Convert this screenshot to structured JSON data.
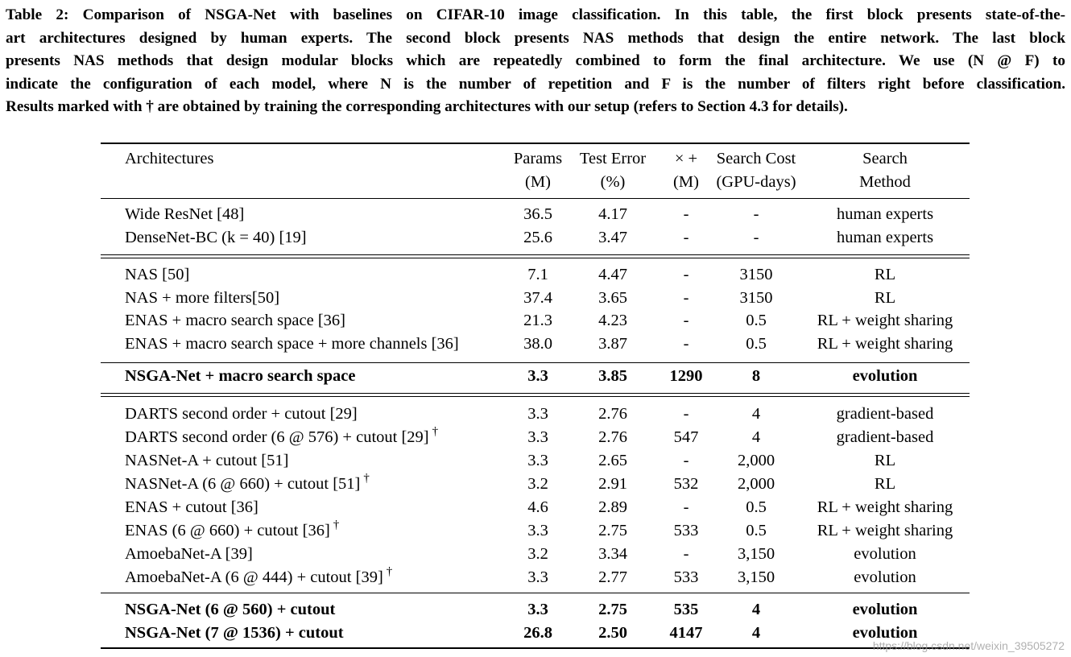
{
  "caption_lines": [
    "Table 2: Comparison of NSGA-Net with baselines on CIFAR-10 image classification. In this table, the first block presents state-of-the-",
    "art architectures designed by human experts. The second block presents NAS methods that design the entire network. The last block",
    "presents NAS methods that design modular blocks which are repeatedly combined to form the final architecture. We use (N @ F) to",
    "indicate the configuration of each model, where N is the number of repetition and F is the number of filters right before classification.",
    "Results marked with † are obtained by training the corresponding architectures with our setup (refers to Section 4.3 for details)."
  ],
  "header": {
    "architectures": "Architectures",
    "params_1": "Params",
    "params_2": "(M)",
    "error_1": "Test Error",
    "error_2": "(%)",
    "macs_1": "× +",
    "macs_2": "(M)",
    "cost_1": "Search Cost",
    "cost_2": "(GPU-days)",
    "method_1": "Search",
    "method_2": "Method"
  },
  "rows": [
    {
      "arch": "Wide ResNet [48]",
      "dagger": "",
      "params": "36.5",
      "error": "4.17",
      "macs": "-",
      "cost": "-",
      "method": "human experts",
      "bold": false
    },
    {
      "arch": "DenseNet-BC (k = 40) [19]",
      "dagger": "",
      "params": "25.6",
      "error": "3.47",
      "macs": "-",
      "cost": "-",
      "method": "human experts",
      "bold": false
    },
    {
      "arch": "NAS [50]",
      "dagger": "",
      "params": "7.1",
      "error": "4.47",
      "macs": "-",
      "cost": "3150",
      "method": "RL",
      "bold": false
    },
    {
      "arch": "NAS + more filters[50]",
      "dagger": "",
      "params": "37.4",
      "error": "3.65",
      "macs": "-",
      "cost": "3150",
      "method": "RL",
      "bold": false
    },
    {
      "arch": "ENAS + macro search space [36]",
      "dagger": "",
      "params": "21.3",
      "error": "4.23",
      "macs": "-",
      "cost": "0.5",
      "method": "RL + weight sharing",
      "bold": false
    },
    {
      "arch": "ENAS + macro search space + more channels [36]",
      "dagger": "",
      "params": "38.0",
      "error": "3.87",
      "macs": "-",
      "cost": "0.5",
      "method": "RL + weight sharing",
      "bold": false
    },
    {
      "arch": "NSGA-Net + macro search space",
      "dagger": "",
      "params": "3.3",
      "error": "3.85",
      "macs": "1290",
      "cost": "8",
      "method": "evolution",
      "bold": true
    },
    {
      "arch": "DARTS second order + cutout [29]",
      "dagger": "",
      "params": "3.3",
      "error": "2.76",
      "macs": "-",
      "cost": "4",
      "method": "gradient-based",
      "bold": false
    },
    {
      "arch": "DARTS second order (6 @ 576) + cutout [29]",
      "dagger": "†",
      "params": "3.3",
      "error": "2.76",
      "macs": "547",
      "cost": "4",
      "method": "gradient-based",
      "bold": false
    },
    {
      "arch": "NASNet-A + cutout [51]",
      "dagger": "",
      "params": "3.3",
      "error": "2.65",
      "macs": "-",
      "cost": "2,000",
      "method": "RL",
      "bold": false
    },
    {
      "arch": "NASNet-A (6 @ 660) + cutout [51]",
      "dagger": "†",
      "params": "3.2",
      "error": "2.91",
      "macs": "532",
      "cost": "2,000",
      "method": "RL",
      "bold": false
    },
    {
      "arch": "ENAS + cutout [36]",
      "dagger": "",
      "params": "4.6",
      "error": "2.89",
      "macs": "-",
      "cost": "0.5",
      "method": "RL + weight sharing",
      "bold": false
    },
    {
      "arch": "ENAS (6 @ 660) + cutout [36]",
      "dagger": "†",
      "params": "3.3",
      "error": "2.75",
      "macs": "533",
      "cost": "0.5",
      "method": "RL + weight sharing",
      "bold": false
    },
    {
      "arch": "AmoebaNet-A [39]",
      "dagger": "",
      "params": "3.2",
      "error": "3.34",
      "macs": "-",
      "cost": "3,150",
      "method": "evolution",
      "bold": false
    },
    {
      "arch": "AmoebaNet-A (6 @ 444) + cutout [39]",
      "dagger": "†",
      "params": "3.3",
      "error": "2.77",
      "macs": "533",
      "cost": "3,150",
      "method": "evolution",
      "bold": false
    },
    {
      "arch": "NSGA-Net (6 @ 560) + cutout",
      "dagger": "",
      "params": "3.3",
      "error": "2.75",
      "macs": "535",
      "cost": "4",
      "method": "evolution",
      "bold": true
    },
    {
      "arch": "NSGA-Net (7 @ 1536) + cutout",
      "dagger": "",
      "params": "26.8",
      "error": "2.50",
      "macs": "4147",
      "cost": "4",
      "method": "evolution",
      "bold": true
    }
  ],
  "watermark": "https://blog.csdn.net/weixin_39505272"
}
